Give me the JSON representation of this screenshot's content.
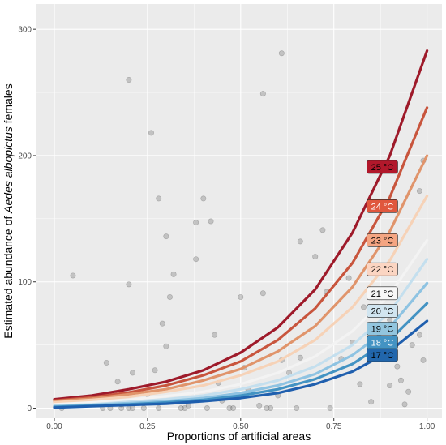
{
  "chart_data": {
    "type": "line",
    "xlabel": "Proportions of artificial areas",
    "ylabel_parts": [
      "Estimated abundance of ",
      "Aedes albopictus",
      " females"
    ],
    "xlim": [
      -0.05,
      1.04
    ],
    "ylim": [
      -8,
      320
    ],
    "x_ticks": [
      0.0,
      0.25,
      0.5,
      0.75,
      1.0
    ],
    "x_tick_labels": [
      "0.00",
      "0.25",
      "0.50",
      "0.75",
      "1.00"
    ],
    "y_ticks": [
      0,
      100,
      200,
      300
    ],
    "y_tick_labels": [
      "0",
      "100",
      "200",
      "300"
    ],
    "x": [
      0.0,
      0.1,
      0.2,
      0.3,
      0.4,
      0.5,
      0.6,
      0.7,
      0.8,
      0.9,
      1.0
    ],
    "series": [
      {
        "name": "25 °C",
        "color": "#9e1a2a",
        "values": [
          7,
          10,
          15,
          21,
          30,
          44,
          64,
          94,
          139,
          200,
          283
        ]
      },
      {
        "name": "24 °C",
        "color": "#c8553d",
        "values": [
          6,
          8.5,
          12.5,
          18,
          26,
          37,
          54,
          79,
          115,
          167,
          238
        ]
      },
      {
        "name": "23 °C",
        "color": "#e0946b",
        "values": [
          5.5,
          7.5,
          11,
          15,
          22,
          31,
          45,
          65,
          96,
          140,
          200
        ]
      },
      {
        "name": "22 °C",
        "color": "#f6d2b7",
        "values": [
          4.5,
          6.5,
          9,
          13,
          18,
          26,
          37,
          54,
          80,
          117,
          168
        ]
      },
      {
        "name": "21 °C",
        "color": "#f3f3f3",
        "values": [
          3,
          4.5,
          6.5,
          9.5,
          13,
          19,
          28,
          41,
          61,
          90,
          133
        ]
      },
      {
        "name": "20 °C",
        "color": "#c4dfee",
        "values": [
          2,
          3,
          5,
          7,
          10,
          15,
          22,
          33,
          50,
          76,
          118
        ]
      },
      {
        "name": "19 °C",
        "color": "#8ec3e2",
        "values": [
          1.5,
          2.5,
          4,
          5.5,
          8,
          12,
          18,
          27,
          42,
          64,
          99
        ]
      },
      {
        "name": "18 °C",
        "color": "#4393c3",
        "values": [
          1,
          2,
          3,
          4.5,
          6.5,
          10,
          15,
          23,
          35,
          54,
          83
        ]
      },
      {
        "name": "17 °C",
        "color": "#1f5fae",
        "values": [
          0.5,
          1.5,
          2.5,
          3.5,
          5.5,
          8,
          12,
          19,
          29,
          45,
          69
        ]
      }
    ],
    "temperature_labels": [
      {
        "text": "25 °C",
        "y": 191,
        "fill": "#b2182b",
        "text_color": "#000000"
      },
      {
        "text": "24 °C",
        "y": 160,
        "fill": "#e0573d",
        "text_color": "#ffffff"
      },
      {
        "text": "23 °C",
        "y": 133,
        "fill": "#f4a582",
        "text_color": "#000000"
      },
      {
        "text": "22 °C",
        "y": 110,
        "fill": "#fbd5c2",
        "text_color": "#000000"
      },
      {
        "text": "21 °C",
        "y": 91,
        "fill": "#f7f7f7",
        "text_color": "#000000"
      },
      {
        "text": "20 °C",
        "y": 77,
        "fill": "#d1e5f0",
        "text_color": "#000000"
      },
      {
        "text": "19 °C",
        "y": 63,
        "fill": "#92c5de",
        "text_color": "#000000"
      },
      {
        "text": "18 °C",
        "y": 52,
        "fill": "#4393c3",
        "text_color": "#ffffff"
      },
      {
        "text": "17 °C",
        "y": 42,
        "fill": "#2166ac",
        "text_color": "#000000"
      }
    ],
    "scatter": [
      [
        0.05,
        105
      ],
      [
        0.02,
        0
      ],
      [
        0.13,
        0
      ],
      [
        0.14,
        36
      ],
      [
        0.15,
        0
      ],
      [
        0.17,
        21
      ],
      [
        0.18,
        0
      ],
      [
        0.18,
        3
      ],
      [
        0.2,
        0
      ],
      [
        0.2,
        98
      ],
      [
        0.21,
        0
      ],
      [
        0.21,
        28
      ],
      [
        0.2,
        260
      ],
      [
        0.24,
        0
      ],
      [
        0.25,
        11
      ],
      [
        0.26,
        218
      ],
      [
        0.27,
        30
      ],
      [
        0.28,
        0
      ],
      [
        0.28,
        166
      ],
      [
        0.29,
        67
      ],
      [
        0.3,
        136
      ],
      [
        0.3,
        49
      ],
      [
        0.31,
        88
      ],
      [
        0.32,
        106
      ],
      [
        0.34,
        0
      ],
      [
        0.35,
        0
      ],
      [
        0.36,
        2
      ],
      [
        0.38,
        118
      ],
      [
        0.38,
        147
      ],
      [
        0.4,
        166
      ],
      [
        0.41,
        0
      ],
      [
        0.42,
        148
      ],
      [
        0.43,
        58
      ],
      [
        0.44,
        20
      ],
      [
        0.45,
        6
      ],
      [
        0.47,
        0
      ],
      [
        0.48,
        0
      ],
      [
        0.5,
        88
      ],
      [
        0.51,
        32
      ],
      [
        0.52,
        15
      ],
      [
        0.55,
        2
      ],
      [
        0.56,
        91
      ],
      [
        0.56,
        249
      ],
      [
        0.57,
        0
      ],
      [
        0.58,
        0
      ],
      [
        0.6,
        10
      ],
      [
        0.61,
        38
      ],
      [
        0.61,
        281
      ],
      [
        0.63,
        28
      ],
      [
        0.65,
        0
      ],
      [
        0.66,
        40
      ],
      [
        0.66,
        132
      ],
      [
        0.7,
        120
      ],
      [
        0.72,
        141
      ],
      [
        0.73,
        92
      ],
      [
        0.74,
        0
      ],
      [
        0.77,
        39
      ],
      [
        0.79,
        103
      ],
      [
        0.8,
        52
      ],
      [
        0.82,
        19
      ],
      [
        0.83,
        80
      ],
      [
        0.85,
        5
      ],
      [
        0.86,
        54
      ],
      [
        0.88,
        137
      ],
      [
        0.9,
        70
      ],
      [
        0.9,
        18
      ],
      [
        0.92,
        33
      ],
      [
        0.93,
        22
      ],
      [
        0.94,
        3
      ],
      [
        0.95,
        13
      ],
      [
        0.96,
        50
      ],
      [
        0.98,
        58
      ],
      [
        0.98,
        172
      ],
      [
        0.99,
        196
      ],
      [
        0.99,
        38
      ]
    ]
  }
}
